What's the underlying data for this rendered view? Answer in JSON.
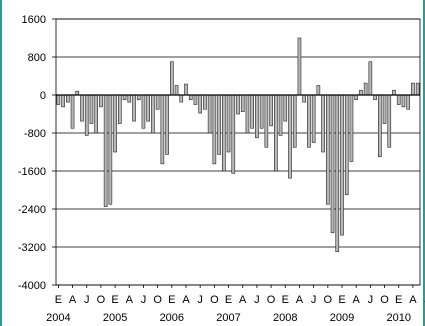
{
  "chart_data": {
    "type": "bar",
    "title": "",
    "xlabel": "",
    "ylabel": "",
    "ylim": [
      -4000,
      1600
    ],
    "yticks": [
      1600,
      800,
      0,
      -800,
      -1600,
      -2400,
      -3200,
      -4000
    ],
    "ytick_labels": [
      "1600",
      "800",
      "0",
      "-800",
      "-1600",
      "-2400",
      "-3200",
      "-4000"
    ],
    "grid": "horizontal",
    "month_letters": [
      "E",
      "A",
      "J",
      "O",
      "E",
      "A",
      "J",
      "O",
      "E",
      "A",
      "J",
      "O",
      "E",
      "A",
      "J",
      "O",
      "E",
      "A",
      "J",
      "O",
      "E",
      "A",
      "J",
      "O",
      "E",
      "A",
      "J",
      "O",
      "E"
    ],
    "years": [
      "2004",
      "2005",
      "2006",
      "2007",
      "2008",
      "2009",
      "2010"
    ],
    "start": "2004-01",
    "end": "2010-01",
    "values": [
      -200,
      -250,
      -150,
      -700,
      80,
      -550,
      -850,
      -600,
      -800,
      -250,
      -2350,
      -2300,
      -1200,
      -600,
      -100,
      -150,
      -550,
      -100,
      -700,
      -550,
      -800,
      -300,
      -1450,
      -1250,
      700,
      200,
      -150,
      230,
      -100,
      -200,
      -380,
      -300,
      -800,
      -1450,
      -1250,
      -1600,
      -1200,
      -1650,
      -400,
      -350,
      -800,
      -700,
      -900,
      -700,
      -1100,
      -650,
      -1600,
      -850,
      -550,
      -1750,
      -1100,
      1200,
      -150,
      -1100,
      -1000,
      200,
      -1200,
      -2300,
      -2900,
      -3300,
      -2950,
      -2100,
      -1400,
      -100,
      100,
      250,
      700,
      -100,
      -1300,
      -600,
      -1100,
      100,
      -200,
      -250,
      -300,
      250,
      250
    ]
  }
}
